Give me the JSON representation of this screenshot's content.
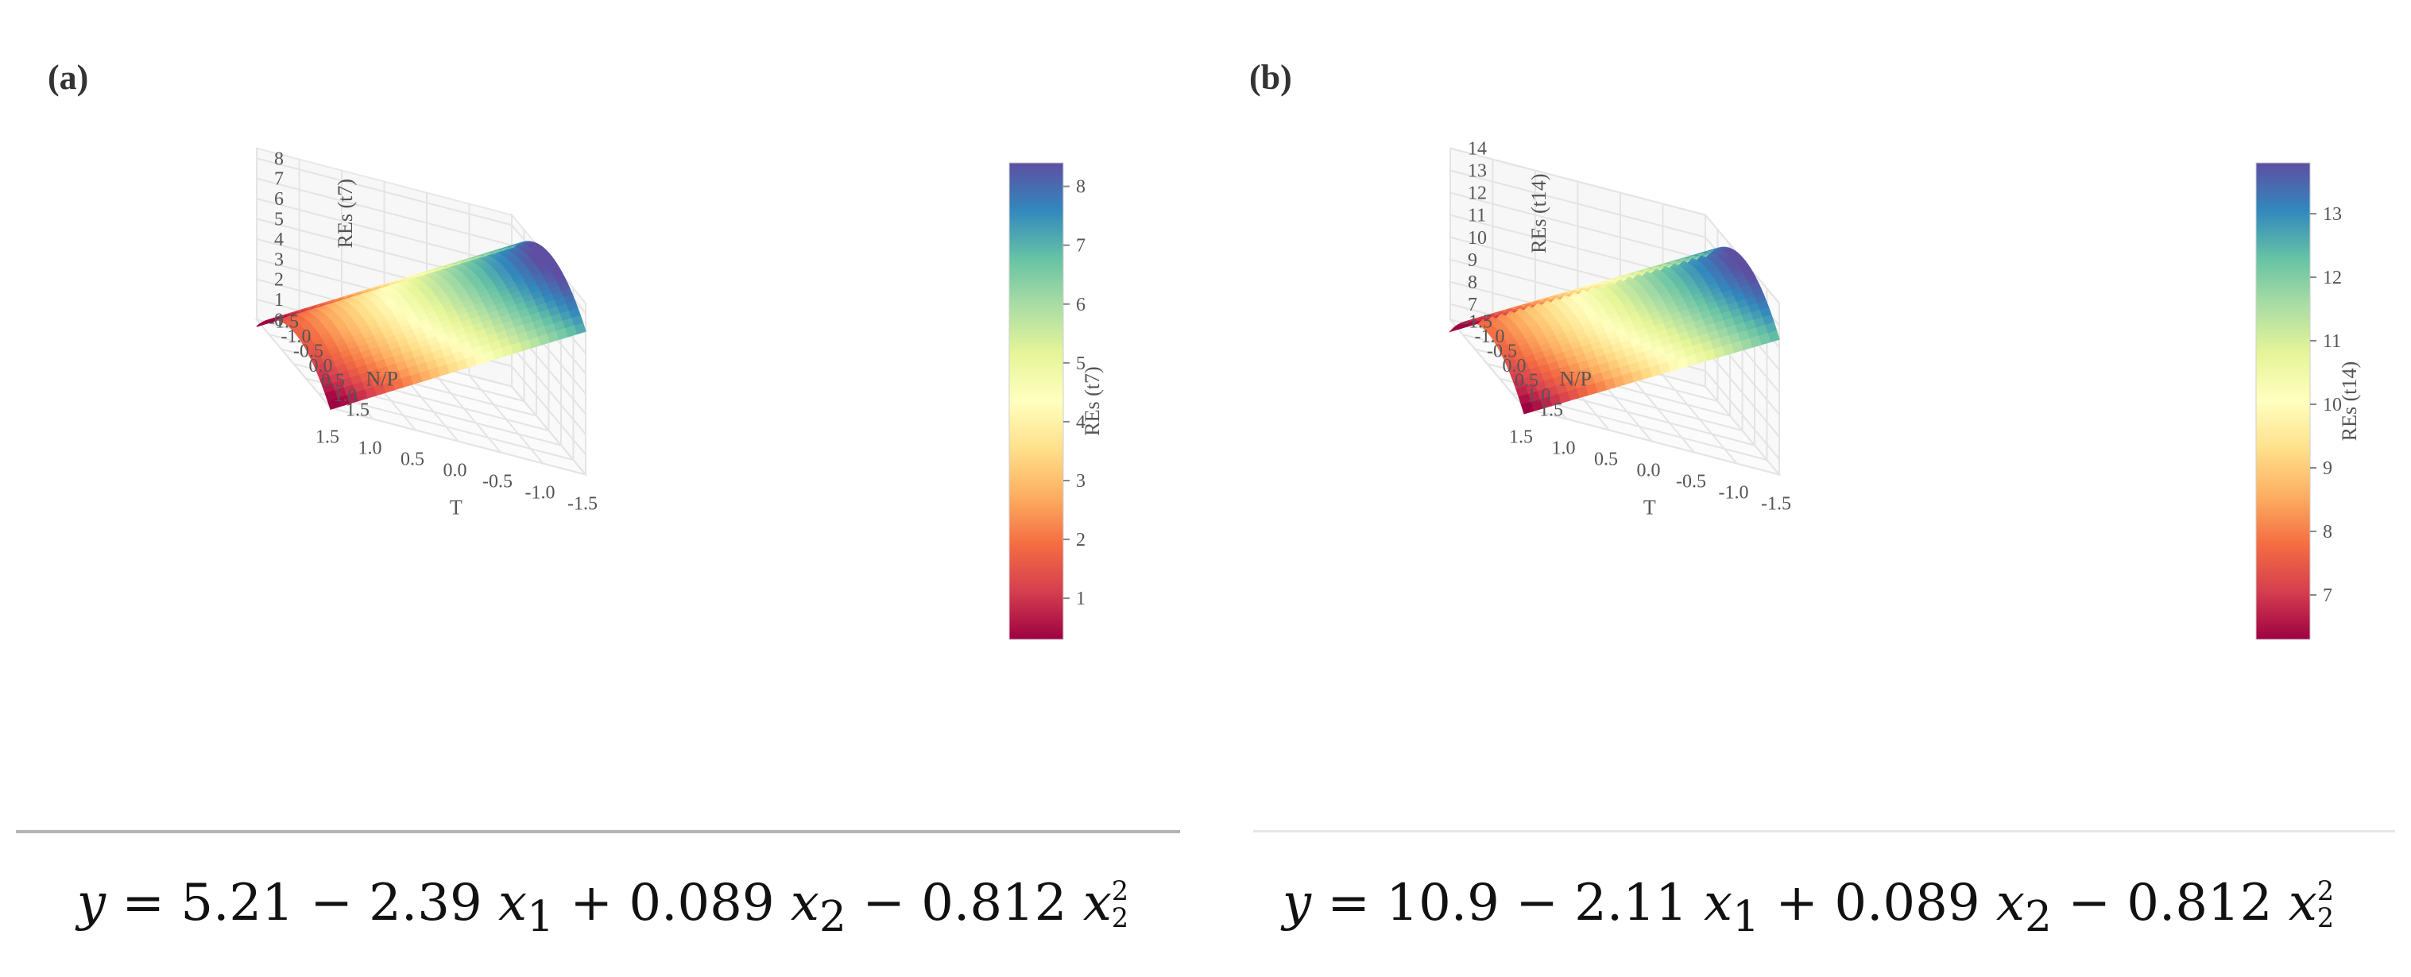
{
  "chart_data": [
    {
      "type": "surface",
      "panel_label": "(a)",
      "xlabel": "T",
      "ylabel": "N/P",
      "zlabel": "REs (t7)",
      "colorbar_label": "REs (t7)",
      "colormap": "Spectral",
      "x_ticks": [
        "-1.5",
        "-1.0",
        "-0.5",
        "0.0",
        "0.5",
        "1.0",
        "1.5"
      ],
      "y_ticks": [
        "-1.5",
        "-1.0",
        "-0.5",
        "0.0",
        "0.5",
        "1.0",
        "1.5"
      ],
      "z_ticks": [
        "0",
        "1",
        "2",
        "3",
        "4",
        "5",
        "6",
        "7",
        "8"
      ],
      "colorbar_ticks": [
        "1",
        "2",
        "3",
        "4",
        "5",
        "6",
        "7",
        "8"
      ],
      "zlim": [
        0,
        8.5
      ],
      "colorbar_range": [
        0.3,
        8.4
      ],
      "x_range": [
        -1.5,
        1.5
      ],
      "y_range": [
        -1.5,
        1.5
      ],
      "model": {
        "b0": 5.21,
        "b1": -2.39,
        "b2": 0.089,
        "b22": -0.812
      },
      "equation": {
        "prefix": "𝑦 = 5.21 − 2.39 𝑥",
        "sub1": "1",
        "mid": " + 0.089 𝑥",
        "sub2": "2",
        "mid2": " − 0.812 𝑥",
        "sub3": "2",
        "sup3": "2"
      }
    },
    {
      "type": "surface",
      "panel_label": "(b)",
      "xlabel": "T",
      "ylabel": "N/P",
      "zlabel": "REs (t14)",
      "colorbar_label": "REs (t14)",
      "colormap": "Spectral",
      "x_ticks": [
        "-1.5",
        "-1.0",
        "-0.5",
        "0.0",
        "0.5",
        "1.0",
        "1.5"
      ],
      "y_ticks": [
        "-1.5",
        "-1.0",
        "-0.5",
        "0.0",
        "0.5",
        "1.0",
        "1.5"
      ],
      "z_ticks": [
        "7",
        "8",
        "9",
        "10",
        "11",
        "12",
        "13",
        "14"
      ],
      "colorbar_ticks": [
        "7",
        "8",
        "9",
        "10",
        "11",
        "12",
        "13"
      ],
      "zlim": [
        6.3,
        14
      ],
      "colorbar_range": [
        6.3,
        13.8
      ],
      "x_range": [
        -1.5,
        1.5
      ],
      "y_range": [
        -1.5,
        1.5
      ],
      "model": {
        "b0": 10.9,
        "b1": -2.11,
        "b2": 0.089,
        "b22": -0.812
      },
      "equation": {
        "prefix": "𝑦 = 10.9 − 2.11 𝑥",
        "sub1": "1",
        "mid": " + 0.089 𝑥",
        "sub2": "2",
        "mid2": " − 0.812 𝑥",
        "sub3": "2",
        "sup3": "2"
      }
    }
  ]
}
